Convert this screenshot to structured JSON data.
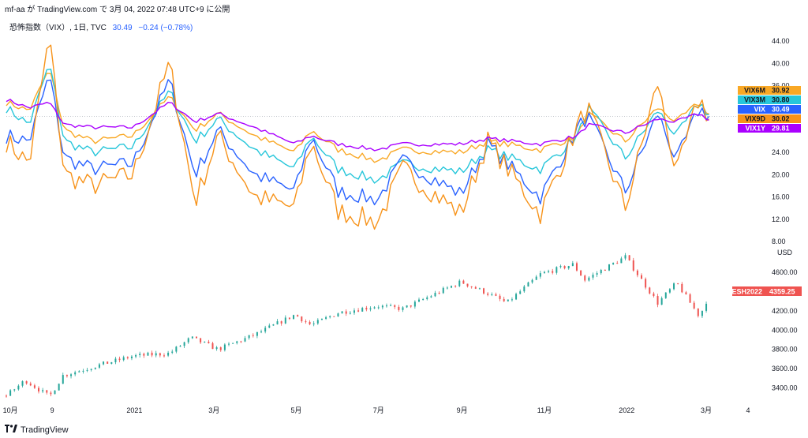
{
  "header": {
    "text": "mf-aa が TradingView.com で 3月 04, 2022 07:48 UTC+9 に公開"
  },
  "legend": {
    "symbol": "恐怖指数（VIX）, 1日, TVC",
    "value": "30.49",
    "change": "−0.24 (−0.78%)"
  },
  "footer": {
    "brand": "TradingView"
  },
  "colors": {
    "vix6m": "#f9a825",
    "vix3m": "#26c6da",
    "vix": "#2962ff",
    "vix9d": "#f7931a",
    "vix1y": "#aa00ff",
    "up": "#26a69a",
    "down": "#ef5350",
    "es_tag": "#ef5350"
  },
  "chart_data": [
    {
      "type": "line",
      "name": "vix-pane",
      "ylim": [
        8,
        46
      ],
      "y_ticks": [
        "44.00",
        "40.00",
        "36.00",
        "32.00",
        "28.00",
        "24.00",
        "20.00",
        "16.00",
        "12.00",
        "8.00"
      ],
      "x_range": [
        "2020-09-28",
        "2022-04-08"
      ],
      "series": [
        {
          "name": "VIX6M",
          "color": "#f9a825",
          "last_label": "30.92",
          "points": [
            [
              "2020-09-28",
              33
            ],
            [
              "2020-10-15",
              31.5
            ],
            [
              "2020-10-30",
              39
            ],
            [
              "2020-11-10",
              28
            ],
            [
              "2020-12-01",
              26
            ],
            [
              "2020-12-31",
              27
            ],
            [
              "2021-01-27",
              34
            ],
            [
              "2021-02-15",
              28
            ],
            [
              "2021-03-04",
              31
            ],
            [
              "2021-03-31",
              27
            ],
            [
              "2021-04-30",
              24
            ],
            [
              "2021-05-12",
              28
            ],
            [
              "2021-06-01",
              24.5
            ],
            [
              "2021-06-30",
              22.5
            ],
            [
              "2021-07-19",
              24.5
            ],
            [
              "2021-08-31",
              24
            ],
            [
              "2021-09-20",
              26
            ],
            [
              "2021-10-29",
              24.5
            ],
            [
              "2021-11-26",
              27
            ],
            [
              "2021-12-03",
              31
            ],
            [
              "2021-12-31",
              26
            ],
            [
              "2022-01-24",
              32
            ],
            [
              "2022-02-07",
              29.5
            ],
            [
              "2022-02-24",
              33
            ],
            [
              "2022-03-03",
              30.92
            ]
          ]
        },
        {
          "name": "VIX3M",
          "color": "#26c6da",
          "last_label": "30.80",
          "points": [
            [
              "2020-09-28",
              32
            ],
            [
              "2020-10-15",
              29
            ],
            [
              "2020-10-30",
              40
            ],
            [
              "2020-11-10",
              26
            ],
            [
              "2020-12-01",
              24
            ],
            [
              "2020-12-31",
              25
            ],
            [
              "2021-01-27",
              35
            ],
            [
              "2021-02-15",
              26
            ],
            [
              "2021-03-04",
              30
            ],
            [
              "2021-03-31",
              24.5
            ],
            [
              "2021-04-30",
              21
            ],
            [
              "2021-05-12",
              27
            ],
            [
              "2021-06-01",
              21
            ],
            [
              "2021-06-30",
              19
            ],
            [
              "2021-07-19",
              22
            ],
            [
              "2021-08-31",
              20.5
            ],
            [
              "2021-09-20",
              24.5
            ],
            [
              "2021-10-29",
              21
            ],
            [
              "2021-11-26",
              27
            ],
            [
              "2021-12-03",
              32
            ],
            [
              "2021-12-31",
              23
            ],
            [
              "2022-01-24",
              31.5
            ],
            [
              "2022-02-07",
              27
            ],
            [
              "2022-02-24",
              33
            ],
            [
              "2022-03-03",
              30.8
            ]
          ]
        },
        {
          "name": "VIX",
          "color": "#2962ff",
          "last_label": "30.49",
          "points": [
            [
              "2020-09-28",
              27
            ],
            [
              "2020-10-15",
              26
            ],
            [
              "2020-10-30",
              38
            ],
            [
              "2020-11-10",
              23
            ],
            [
              "2020-12-01",
              21
            ],
            [
              "2020-12-31",
              22
            ],
            [
              "2021-01-27",
              37
            ],
            [
              "2021-02-15",
              20
            ],
            [
              "2021-03-04",
              28
            ],
            [
              "2021-03-31",
              20
            ],
            [
              "2021-04-30",
              17
            ],
            [
              "2021-05-12",
              27
            ],
            [
              "2021-06-01",
              17
            ],
            [
              "2021-06-30",
              15.5
            ],
            [
              "2021-07-19",
              22.5
            ],
            [
              "2021-08-31",
              16.5
            ],
            [
              "2021-09-20",
              25.5
            ],
            [
              "2021-10-29",
              16
            ],
            [
              "2021-11-26",
              28.5
            ],
            [
              "2021-12-03",
              30.5
            ],
            [
              "2021-12-31",
              17
            ],
            [
              "2022-01-24",
              31
            ],
            [
              "2022-02-07",
              22.5
            ],
            [
              "2022-02-24",
              32
            ],
            [
              "2022-03-03",
              30.49
            ]
          ]
        },
        {
          "name": "VIX9D",
          "color": "#f7931a",
          "last_label": "30.02",
          "points": [
            [
              "2020-09-28",
              26
            ],
            [
              "2020-10-15",
              22
            ],
            [
              "2020-10-30",
              45
            ],
            [
              "2020-11-10",
              20
            ],
            [
              "2020-12-01",
              18
            ],
            [
              "2020-12-31",
              20
            ],
            [
              "2021-01-27",
              40
            ],
            [
              "2021-02-15",
              15
            ],
            [
              "2021-03-04",
              27
            ],
            [
              "2021-03-31",
              16
            ],
            [
              "2021-04-30",
              14
            ],
            [
              "2021-05-12",
              26
            ],
            [
              "2021-06-01",
              13.5
            ],
            [
              "2021-06-30",
              11.5
            ],
            [
              "2021-07-19",
              21
            ],
            [
              "2021-08-31",
              13
            ],
            [
              "2021-09-20",
              26
            ],
            [
              "2021-10-29",
              13
            ],
            [
              "2021-11-26",
              29
            ],
            [
              "2021-12-03",
              32
            ],
            [
              "2021-12-31",
              14
            ],
            [
              "2022-01-24",
              36.5
            ],
            [
              "2022-02-07",
              20
            ],
            [
              "2022-02-24",
              34
            ],
            [
              "2022-03-03",
              30.02
            ]
          ]
        },
        {
          "name": "VIX1Y",
          "color": "#aa00ff",
          "last_label": "29.81",
          "points": [
            [
              "2020-09-28",
              33.5
            ],
            [
              "2020-10-15",
              32
            ],
            [
              "2020-10-30",
              33
            ],
            [
              "2020-11-10",
              29
            ],
            [
              "2020-12-01",
              28.5
            ],
            [
              "2020-12-31",
              28.5
            ],
            [
              "2021-01-27",
              33
            ],
            [
              "2021-02-15",
              29.5
            ],
            [
              "2021-03-04",
              31
            ],
            [
              "2021-03-31",
              28.5
            ],
            [
              "2021-04-30",
              25.5
            ],
            [
              "2021-05-12",
              27
            ],
            [
              "2021-06-01",
              25.5
            ],
            [
              "2021-06-30",
              24.5
            ],
            [
              "2021-07-19",
              25.5
            ],
            [
              "2021-08-31",
              25.5
            ],
            [
              "2021-09-20",
              26.5
            ],
            [
              "2021-10-29",
              25.5
            ],
            [
              "2021-11-26",
              27
            ],
            [
              "2021-12-03",
              29
            ],
            [
              "2021-12-31",
              27.5
            ],
            [
              "2022-01-24",
              30
            ],
            [
              "2022-02-07",
              29.5
            ],
            [
              "2022-02-24",
              31
            ],
            [
              "2022-03-03",
              29.81
            ]
          ]
        }
      ]
    },
    {
      "type": "candlestick",
      "name": "es-pane",
      "ylim": [
        3250,
        4820
      ],
      "y_ticks": [
        "4600.00",
        "4400.00",
        "4200.00",
        "4000.00",
        "3800.00",
        "3600.00",
        "3400.00"
      ],
      "unit_label": "USD",
      "series": [
        {
          "name": "ESH2022",
          "last_label": "4359.25",
          "points": [
            [
              "2020-09-28",
              3320
            ],
            [
              "2020-10-12",
              3480
            ],
            [
              "2020-10-30",
              3310
            ],
            [
              "2020-11-09",
              3530
            ],
            [
              "2020-12-01",
              3620
            ],
            [
              "2020-12-31",
              3730
            ],
            [
              "2021-01-27",
              3760
            ],
            [
              "2021-02-12",
              3920
            ],
            [
              "2021-03-04",
              3800
            ],
            [
              "2021-03-31",
              3950
            ],
            [
              "2021-04-30",
              4160
            ],
            [
              "2021-05-12",
              4050
            ],
            [
              "2021-06-01",
              4180
            ],
            [
              "2021-06-30",
              4250
            ],
            [
              "2021-07-19",
              4220
            ],
            [
              "2021-08-31",
              4500
            ],
            [
              "2021-09-20",
              4380
            ],
            [
              "2021-10-04",
              4280
            ],
            [
              "2021-10-29",
              4580
            ],
            [
              "2021-11-22",
              4680
            ],
            [
              "2021-12-01",
              4520
            ],
            [
              "2021-12-31",
              4760
            ],
            [
              "2022-01-24",
              4280
            ],
            [
              "2022-02-07",
              4490
            ],
            [
              "2022-02-24",
              4140
            ],
            [
              "2022-03-03",
              4359.25
            ]
          ]
        }
      ]
    }
  ],
  "x_axis": {
    "labels": [
      [
        "2020-10-01",
        "10月"
      ],
      [
        "2020-11-01",
        "9"
      ],
      [
        "2021-01-01",
        "2021"
      ],
      [
        "2021-03-01",
        "3月"
      ],
      [
        "2021-05-01",
        "5月"
      ],
      [
        "2021-07-01",
        "7月"
      ],
      [
        "2021-09-01",
        "9月"
      ],
      [
        "2021-11-01",
        "11月"
      ],
      [
        "2022-01-01",
        "2022"
      ],
      [
        "2022-03-01",
        "3月"
      ],
      [
        "2022-04-01",
        "4"
      ]
    ]
  }
}
